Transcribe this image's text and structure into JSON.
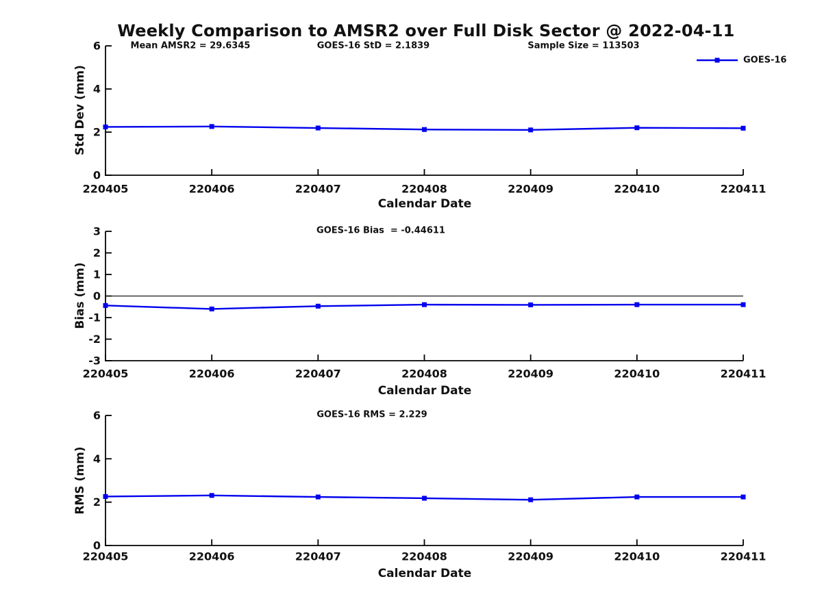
{
  "figure": {
    "title": "Weekly Comparison to AMSR2 over Full Disk Sector @ 2022-04-11",
    "legend": {
      "label": "GOES-16",
      "position": "top-right"
    },
    "colors": {
      "series_blue": "#0000ee",
      "axis_black": "#000000",
      "zero_line": "#1a1a1a",
      "background": "#ffffff"
    }
  },
  "chart_data": [
    {
      "type": "line",
      "panel": "std-dev",
      "annotations": [
        "Mean AMSR2 = 29.6345",
        "GOES-16 StD = 2.1839",
        "Sample Size = 113503"
      ],
      "categories": [
        "220405",
        "220406",
        "220407",
        "220408",
        "220409",
        "220410",
        "220411"
      ],
      "series": [
        {
          "name": "GOES-16",
          "values": [
            2.24,
            2.26,
            2.19,
            2.12,
            2.1,
            2.2,
            2.18
          ]
        }
      ],
      "xlabel": "Calendar Date",
      "ylabel": "Std Dev (mm)",
      "ylim": [
        0,
        6
      ],
      "yticks": [
        0,
        2,
        4,
        6
      ],
      "grid": false,
      "zero_line": false,
      "marker": "square"
    },
    {
      "type": "line",
      "panel": "bias",
      "annotations": [
        "GOES-16 Bias  = -0.44611"
      ],
      "categories": [
        "220405",
        "220406",
        "220407",
        "220408",
        "220409",
        "220410",
        "220411"
      ],
      "series": [
        {
          "name": "GOES-16",
          "values": [
            -0.44,
            -0.6,
            -0.47,
            -0.4,
            -0.41,
            -0.4,
            -0.4
          ]
        }
      ],
      "xlabel": "Calendar Date",
      "ylabel": "Bias (mm)",
      "ylim": [
        -3,
        3
      ],
      "yticks": [
        -3,
        -2,
        -1,
        0,
        1,
        2,
        3
      ],
      "grid": false,
      "zero_line": true,
      "marker": "square"
    },
    {
      "type": "line",
      "panel": "rms",
      "annotations": [
        "GOES-16 RMS = 2.229"
      ],
      "categories": [
        "220405",
        "220406",
        "220407",
        "220408",
        "220409",
        "220410",
        "220411"
      ],
      "series": [
        {
          "name": "GOES-16",
          "values": [
            2.26,
            2.31,
            2.24,
            2.18,
            2.11,
            2.24,
            2.24
          ]
        }
      ],
      "xlabel": "Calendar Date",
      "ylabel": "RMS (mm)",
      "ylim": [
        0,
        6
      ],
      "yticks": [
        0,
        2,
        4,
        6
      ],
      "grid": false,
      "zero_line": false,
      "marker": "square"
    }
  ]
}
